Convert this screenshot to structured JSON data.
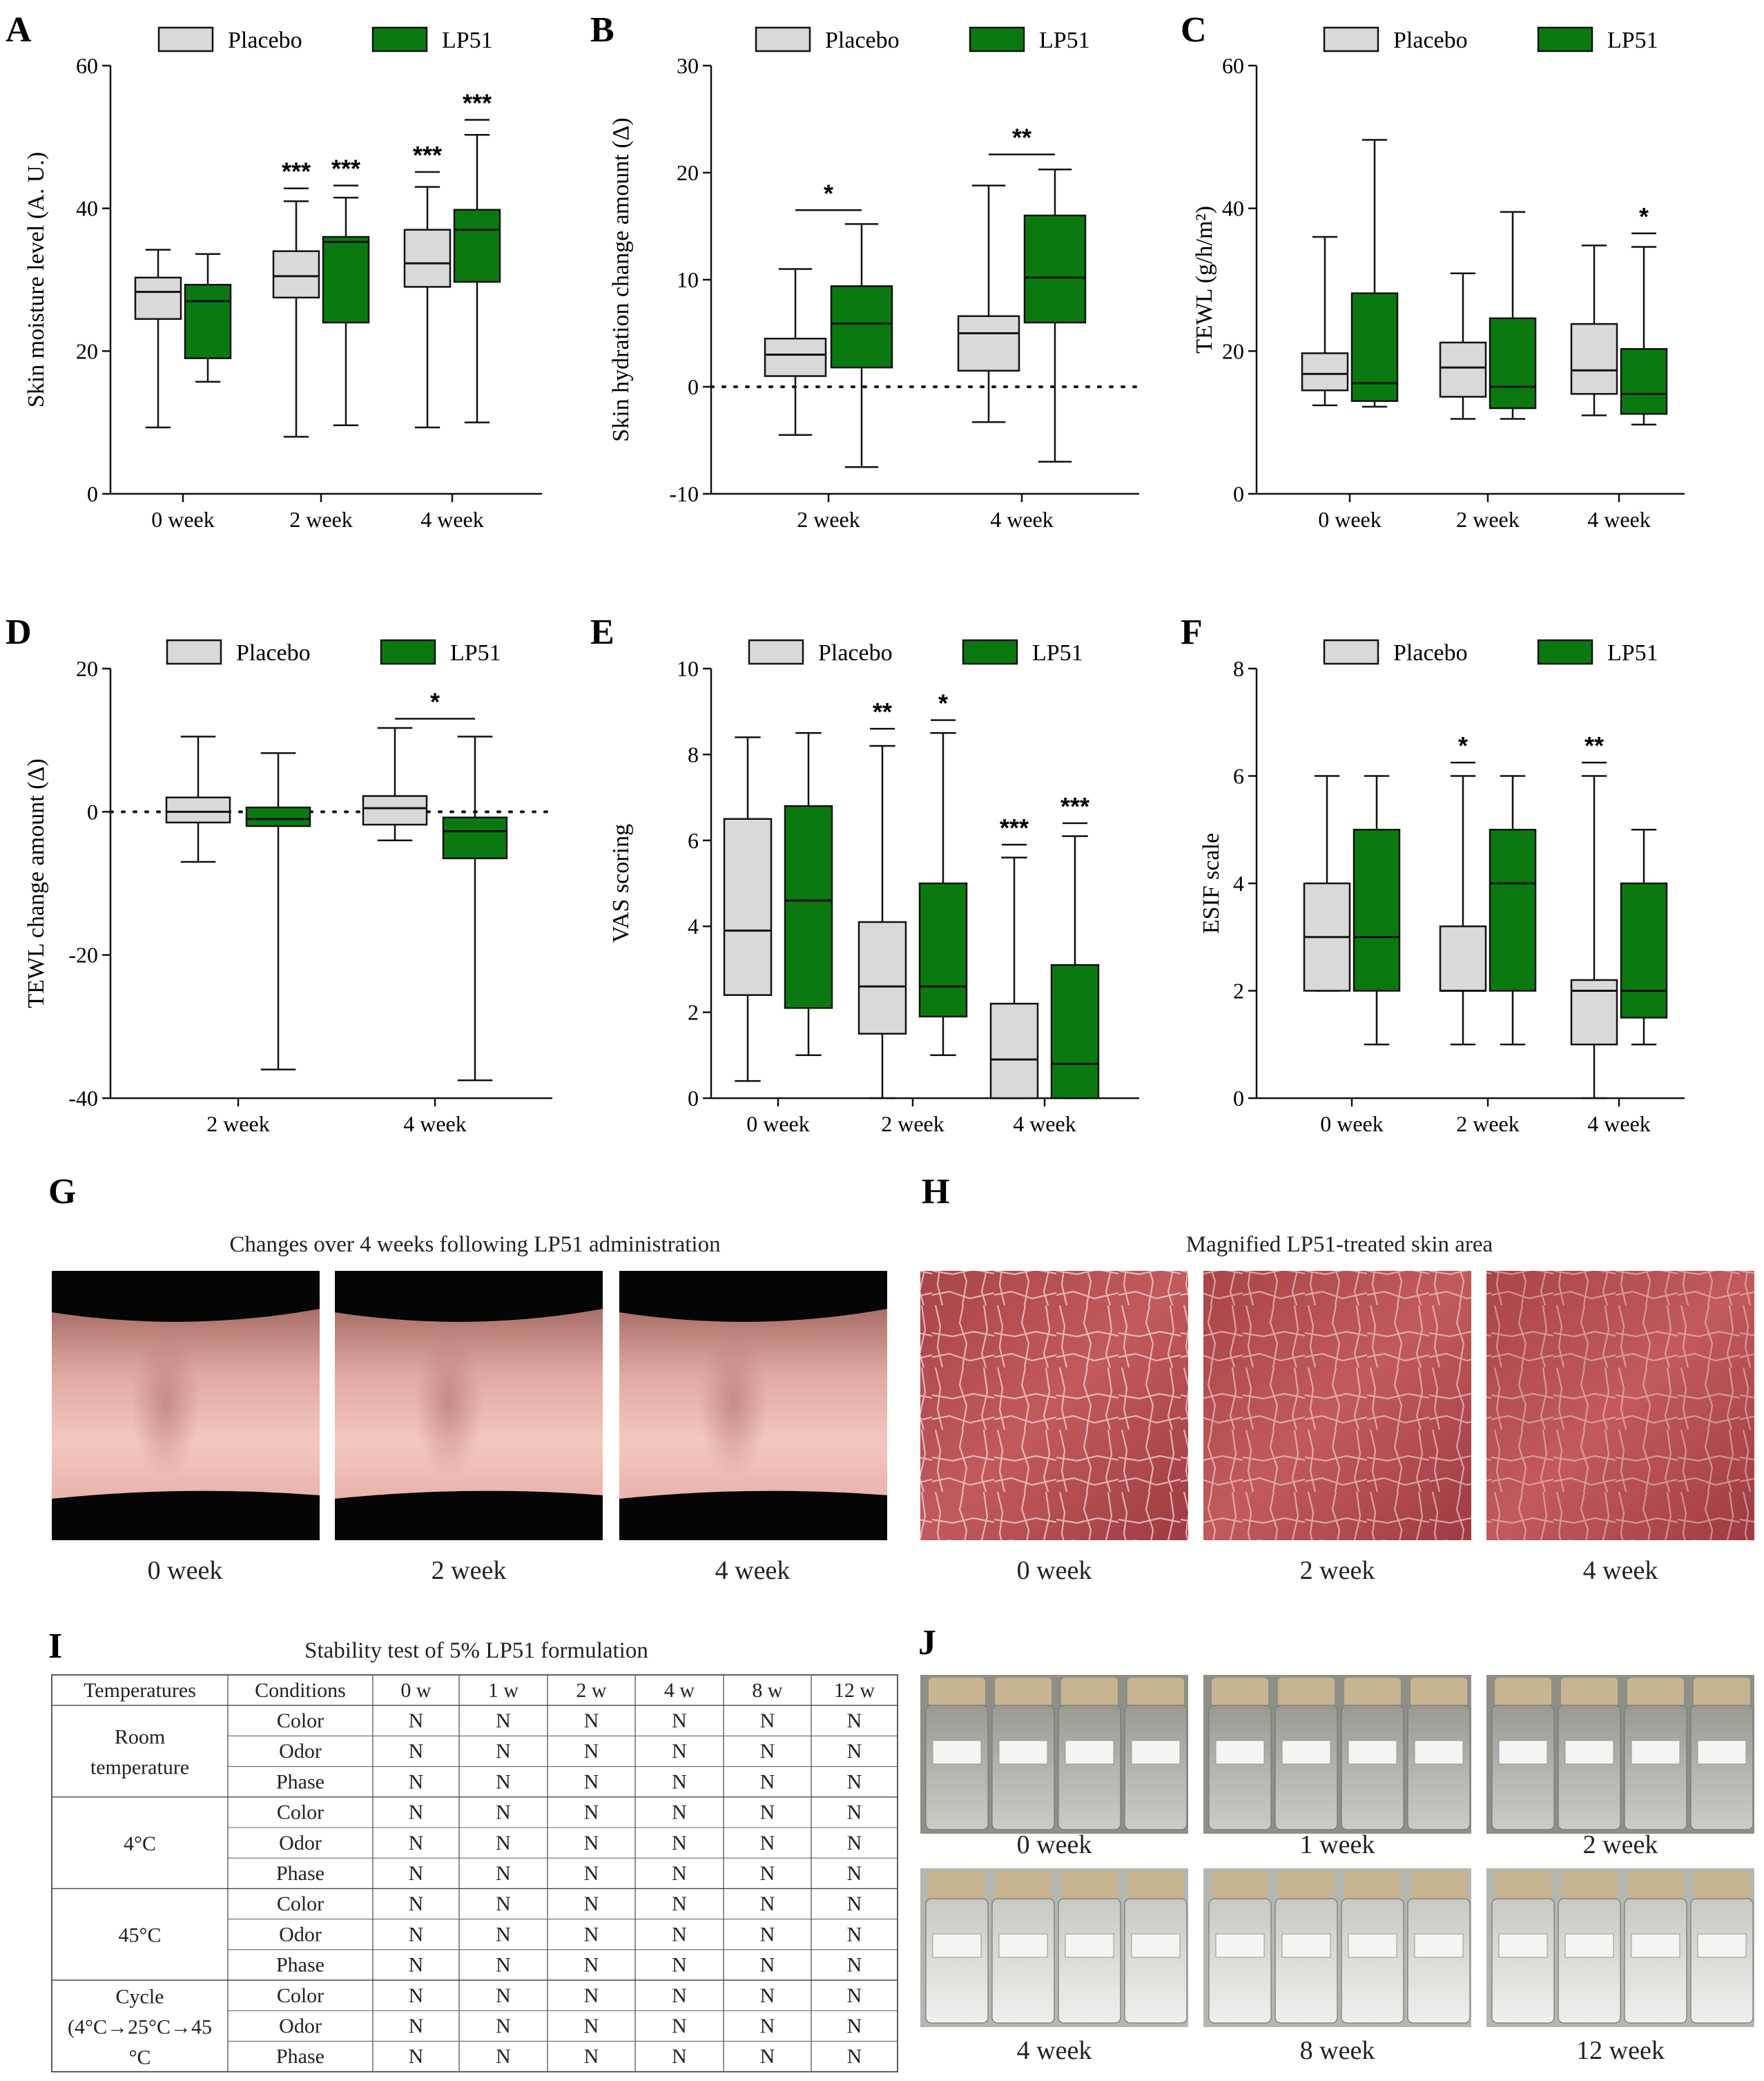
{
  "colors": {
    "placebo": "#d9d9d9",
    "lp51": "#0a7a10",
    "stroke": "#111111"
  },
  "legend": {
    "placebo": "Placebo",
    "lp51": "LP51"
  },
  "chart_data": [
    {
      "panel": "A",
      "type": "box",
      "ylabel": "Skin moisture level (A. U.)",
      "ylim": [
        0,
        60
      ],
      "yticks": [
        0,
        20,
        40,
        60
      ],
      "categories": [
        "0 week",
        "2 week",
        "4 week"
      ],
      "baseline": null,
      "series": [
        {
          "name": "Placebo",
          "boxes": [
            {
              "min": 9.3,
              "q1": 24.5,
              "median": 28.3,
              "q3": 30.3,
              "max": 34.2
            },
            {
              "min": 8.0,
              "q1": 27.5,
              "median": 30.5,
              "q3": 34.0,
              "max": 41.0
            },
            {
              "min": 9.3,
              "q1": 29.0,
              "median": 32.3,
              "q3": 37.0,
              "max": 43.0
            }
          ]
        },
        {
          "name": "LP51",
          "boxes": [
            {
              "min": 15.7,
              "q1": 19.0,
              "median": 27.0,
              "q3": 29.3,
              "max": 33.6
            },
            {
              "min": 9.6,
              "q1": 24.0,
              "median": 35.3,
              "q3": 36.0,
              "max": 41.5
            },
            {
              "min": 10.0,
              "q1": 29.7,
              "median": 37.0,
              "q3": 39.8,
              "max": 50.3
            }
          ]
        }
      ],
      "annotations": [
        {
          "text": "***",
          "cat": 1,
          "series": 0,
          "y": 42.8
        },
        {
          "text": "***",
          "cat": 1,
          "series": 1,
          "y": 43.2
        },
        {
          "text": "***",
          "cat": 2,
          "series": 0,
          "y": 45.1
        },
        {
          "text": "***",
          "cat": 2,
          "series": 1,
          "y": 52.4
        }
      ]
    },
    {
      "panel": "B",
      "type": "box",
      "ylabel": "Skin hydration change amount (Δ)",
      "ylim": [
        -10,
        30
      ],
      "yticks": [
        -10,
        0,
        10,
        20,
        30
      ],
      "categories": [
        "2 week",
        "4 week"
      ],
      "baseline": 0,
      "series": [
        {
          "name": "Placebo",
          "boxes": [
            {
              "min": -4.5,
              "q1": 1.0,
              "median": 3.0,
              "q3": 4.5,
              "max": 11.0
            },
            {
              "min": -3.3,
              "q1": 1.5,
              "median": 5.0,
              "q3": 6.6,
              "max": 18.8
            }
          ]
        },
        {
          "name": "LP51",
          "boxes": [
            {
              "min": -7.5,
              "q1": 1.8,
              "median": 5.9,
              "q3": 9.4,
              "max": 15.2
            },
            {
              "min": -7.0,
              "q1": 6.0,
              "median": 10.2,
              "q3": 16.0,
              "max": 20.3
            }
          ]
        }
      ],
      "annotations": [
        {
          "text": "*",
          "cat": 0,
          "pair": true,
          "y": 16.5
        },
        {
          "text": "**",
          "cat": 1,
          "pair": true,
          "y": 21.7
        }
      ]
    },
    {
      "panel": "C",
      "type": "box",
      "ylabel": "TEWL (g/h/m²)",
      "ylim": [
        0,
        60
      ],
      "yticks": [
        0,
        20,
        40,
        60
      ],
      "categories": [
        "0 week",
        "2 week",
        "4 week"
      ],
      "baseline": null,
      "series": [
        {
          "name": "Placebo",
          "boxes": [
            {
              "min": 12.4,
              "q1": 14.5,
              "median": 16.8,
              "q3": 19.7,
              "max": 36.0
            },
            {
              "min": 10.5,
              "q1": 13.6,
              "median": 17.7,
              "q3": 21.2,
              "max": 30.9
            },
            {
              "min": 11.0,
              "q1": 14.0,
              "median": 17.3,
              "q3": 23.8,
              "max": 34.8
            }
          ]
        },
        {
          "name": "LP51",
          "boxes": [
            {
              "min": 12.2,
              "q1": 13.0,
              "median": 15.5,
              "q3": 28.1,
              "max": 49.6
            },
            {
              "min": 10.5,
              "q1": 12.0,
              "median": 15.0,
              "q3": 24.6,
              "max": 39.5
            },
            {
              "min": 9.7,
              "q1": 11.2,
              "median": 14.0,
              "q3": 20.3,
              "max": 34.6
            }
          ]
        }
      ],
      "annotations": [
        {
          "text": "*",
          "cat": 2,
          "series": 1,
          "y": 36.5
        }
      ]
    },
    {
      "panel": "D",
      "type": "box",
      "ylabel": "TEWL change amount (Δ)",
      "ylim": [
        -40,
        20
      ],
      "yticks": [
        -40,
        -20,
        0,
        20
      ],
      "categories": [
        "2 week",
        "4 week"
      ],
      "baseline": 0,
      "series": [
        {
          "name": "Placebo",
          "boxes": [
            {
              "min": -7.0,
              "q1": -1.5,
              "median": 0.0,
              "q3": 2.0,
              "max": 10.5
            },
            {
              "min": -4.0,
              "q1": -1.8,
              "median": 0.5,
              "q3": 2.2,
              "max": 11.7
            }
          ]
        },
        {
          "name": "LP51",
          "boxes": [
            {
              "min": -36.0,
              "q1": -2.0,
              "median": -1.0,
              "q3": 0.6,
              "max": 8.2
            },
            {
              "min": -37.5,
              "q1": -6.5,
              "median": -2.7,
              "q3": -0.8,
              "max": 10.5
            }
          ]
        }
      ],
      "annotations": [
        {
          "text": "*",
          "cat": 1,
          "pair": true,
          "y": 13.0
        }
      ]
    },
    {
      "panel": "E",
      "type": "box",
      "ylabel": "VAS scoring",
      "ylim": [
        0,
        10
      ],
      "yticks": [
        0,
        2,
        4,
        6,
        8,
        10
      ],
      "categories": [
        "0 week",
        "2 week",
        "4 week"
      ],
      "baseline": null,
      "series": [
        {
          "name": "Placebo",
          "boxes": [
            {
              "min": 0.4,
              "q1": 2.4,
              "median": 3.9,
              "q3": 6.5,
              "max": 8.4
            },
            {
              "min": 0.0,
              "q1": 1.5,
              "median": 2.6,
              "q3": 4.1,
              "max": 8.2
            },
            {
              "min": 0.0,
              "q1": 0.0,
              "median": 0.9,
              "q3": 2.2,
              "max": 5.6
            }
          ]
        },
        {
          "name": "LP51",
          "boxes": [
            {
              "min": 1.0,
              "q1": 2.1,
              "median": 4.6,
              "q3": 6.8,
              "max": 8.5
            },
            {
              "min": 1.0,
              "q1": 1.9,
              "median": 2.6,
              "q3": 5.0,
              "max": 8.5
            },
            {
              "min": 0.0,
              "q1": 0.0,
              "median": 0.8,
              "q3": 3.1,
              "max": 6.1
            }
          ]
        }
      ],
      "annotations": [
        {
          "text": "**",
          "cat": 1,
          "series": 0,
          "y": 8.6
        },
        {
          "text": "*",
          "cat": 1,
          "series": 1,
          "y": 8.8
        },
        {
          "text": "***",
          "cat": 2,
          "series": 0,
          "y": 5.9
        },
        {
          "text": "***",
          "cat": 2,
          "series": 1,
          "y": 6.4
        }
      ]
    },
    {
      "panel": "F",
      "type": "box",
      "ylabel": "ESIF scale",
      "ylim": [
        0,
        8
      ],
      "yticks": [
        0,
        2,
        4,
        6,
        8
      ],
      "categories": [
        "0 week",
        "2 week",
        "4 week"
      ],
      "baseline": null,
      "series": [
        {
          "name": "Placebo",
          "boxes": [
            {
              "min": 2.0,
              "q1": 2.0,
              "median": 3.0,
              "q3": 4.0,
              "max": 6.0
            },
            {
              "min": 1.0,
              "q1": 2.0,
              "median": 2.0,
              "q3": 3.2,
              "max": 6.0
            },
            {
              "min": 0.0,
              "q1": 1.0,
              "median": 2.0,
              "q3": 2.2,
              "max": 6.0
            }
          ]
        },
        {
          "name": "LP51",
          "boxes": [
            {
              "min": 1.0,
              "q1": 2.0,
              "median": 3.0,
              "q3": 5.0,
              "max": 6.0
            },
            {
              "min": 1.0,
              "q1": 2.0,
              "median": 4.0,
              "q3": 5.0,
              "max": 6.0
            },
            {
              "min": 1.0,
              "q1": 1.5,
              "median": 2.0,
              "q3": 4.0,
              "max": 5.0
            }
          ]
        }
      ],
      "annotations": [
        {
          "text": "*",
          "cat": 1,
          "series": 0,
          "y": 6.25
        },
        {
          "text": "**",
          "cat": 2,
          "series": 0,
          "y": 6.25
        }
      ]
    }
  ],
  "panel_g": {
    "label": "G",
    "title": "Changes over 4 weeks following LP51 administration",
    "captions": [
      "0 week",
      "2 week",
      "4 week"
    ]
  },
  "panel_h": {
    "label": "H",
    "title": "Magnified LP51-treated skin area",
    "captions": [
      "0 week",
      "2 week",
      "4 week"
    ]
  },
  "panel_i": {
    "label": "I",
    "title": "Stability test of 5% LP51 formulation",
    "headers": [
      "Temperatures",
      "Conditions",
      "0 w",
      "1 w",
      "2 w",
      "4 w",
      "8 w",
      "12 w"
    ],
    "groups": [
      {
        "name_lines": [
          "Room",
          "temperature"
        ],
        "rows": [
          {
            "condition": "Color",
            "values": [
              "N",
              "N",
              "N",
              "N",
              "N",
              "N"
            ]
          },
          {
            "condition": "Odor",
            "values": [
              "N",
              "N",
              "N",
              "N",
              "N",
              "N"
            ]
          },
          {
            "condition": "Phase",
            "values": [
              "N",
              "N",
              "N",
              "N",
              "N",
              "N"
            ]
          }
        ]
      },
      {
        "name_lines": [
          "4°C"
        ],
        "rows": [
          {
            "condition": "Color",
            "values": [
              "N",
              "N",
              "N",
              "N",
              "N",
              "N"
            ]
          },
          {
            "condition": "Odor",
            "values": [
              "N",
              "N",
              "N",
              "N",
              "N",
              "N"
            ]
          },
          {
            "condition": "Phase",
            "values": [
              "N",
              "N",
              "N",
              "N",
              "N",
              "N"
            ]
          }
        ]
      },
      {
        "name_lines": [
          "45°C"
        ],
        "rows": [
          {
            "condition": "Color",
            "values": [
              "N",
              "N",
              "N",
              "N",
              "N",
              "N"
            ]
          },
          {
            "condition": "Odor",
            "values": [
              "N",
              "N",
              "N",
              "N",
              "N",
              "N"
            ]
          },
          {
            "condition": "Phase",
            "values": [
              "N",
              "N",
              "N",
              "N",
              "N",
              "N"
            ]
          }
        ]
      },
      {
        "name_lines": [
          "Cycle",
          "(4°C→25°C→45",
          "°C"
        ],
        "rows": [
          {
            "condition": "Color",
            "values": [
              "N",
              "N",
              "N",
              "N",
              "N",
              "N"
            ]
          },
          {
            "condition": "Odor",
            "values": [
              "N",
              "N",
              "N",
              "N",
              "N",
              "N"
            ]
          },
          {
            "condition": "Phase",
            "values": [
              "N",
              "N",
              "N",
              "N",
              "N",
              "N"
            ]
          }
        ]
      }
    ]
  },
  "panel_j": {
    "label": "J",
    "captions": [
      "0 week",
      "1 week",
      "2 week",
      "4 week",
      "8 week",
      "12 week"
    ]
  }
}
